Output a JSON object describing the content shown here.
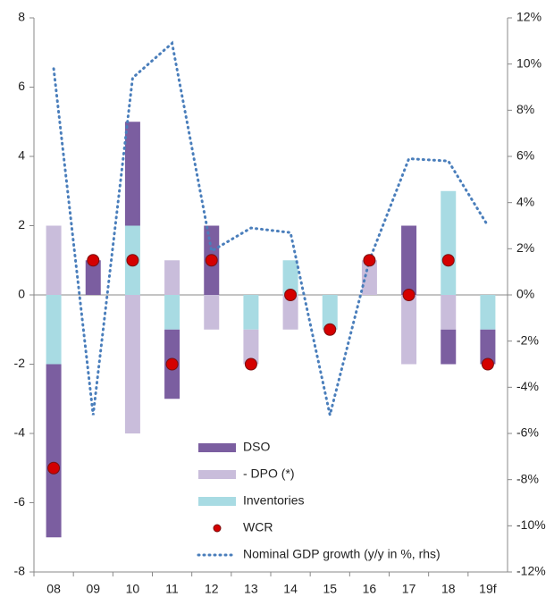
{
  "chart_data": {
    "type": "bar",
    "categories": [
      "08",
      "09",
      "10",
      "11",
      "12",
      "13",
      "14",
      "15",
      "16",
      "17",
      "18",
      "19f"
    ],
    "series": [
      {
        "name": "DSO",
        "color": "#7b5ea0",
        "values": [
          -5,
          1,
          3,
          -2,
          2,
          0,
          0,
          0,
          0,
          2,
          -1,
          -1
        ]
      },
      {
        "name": "- DPO (*)",
        "color": "#c9bddb",
        "values": [
          2,
          0,
          -4,
          1,
          -1,
          -1,
          -1,
          0,
          1,
          -2,
          -1,
          0
        ]
      },
      {
        "name": "Inventories",
        "color": "#a8dbe3",
        "values": [
          -2,
          0,
          2,
          -1,
          0,
          -1,
          1,
          -1,
          0,
          0,
          3,
          -1
        ]
      },
      {
        "name": "WCR",
        "color": "#d40000",
        "type": "scatter",
        "values": [
          -5,
          1,
          1,
          -2,
          1,
          -2,
          0,
          -1,
          1,
          0,
          1,
          -2
        ]
      },
      {
        "name": "Nominal GDP growth (y/y in %, rhs)",
        "color": "#4a7ebb",
        "type": "line",
        "axis": "y2",
        "values": [
          9.8,
          -5.2,
          9.4,
          10.9,
          1.9,
          2.9,
          2.7,
          -5.2,
          1.5,
          5.9,
          5.8,
          3.0
        ]
      }
    ],
    "ylim": [
      -8,
      8
    ],
    "yticks": [
      -8,
      -6,
      -4,
      -2,
      0,
      2,
      4,
      6,
      8
    ],
    "y2lim": [
      -12,
      12
    ],
    "y2ticks": [
      {
        "value": -12,
        "label": "-12%"
      },
      {
        "value": -10,
        "label": "-10%"
      },
      {
        "value": -8,
        "label": "-8%"
      },
      {
        "value": -6,
        "label": "-6%"
      },
      {
        "value": -4,
        "label": "-4%"
      },
      {
        "value": -2,
        "label": "-2%"
      },
      {
        "value": 0,
        "label": "0%"
      },
      {
        "value": 2,
        "label": "2%"
      },
      {
        "value": 4,
        "label": "4%"
      },
      {
        "value": 6,
        "label": "6%"
      },
      {
        "value": 8,
        "label": "8%"
      },
      {
        "value": 10,
        "label": "10%"
      },
      {
        "value": 12,
        "label": "12%"
      }
    ],
    "grid": false
  }
}
